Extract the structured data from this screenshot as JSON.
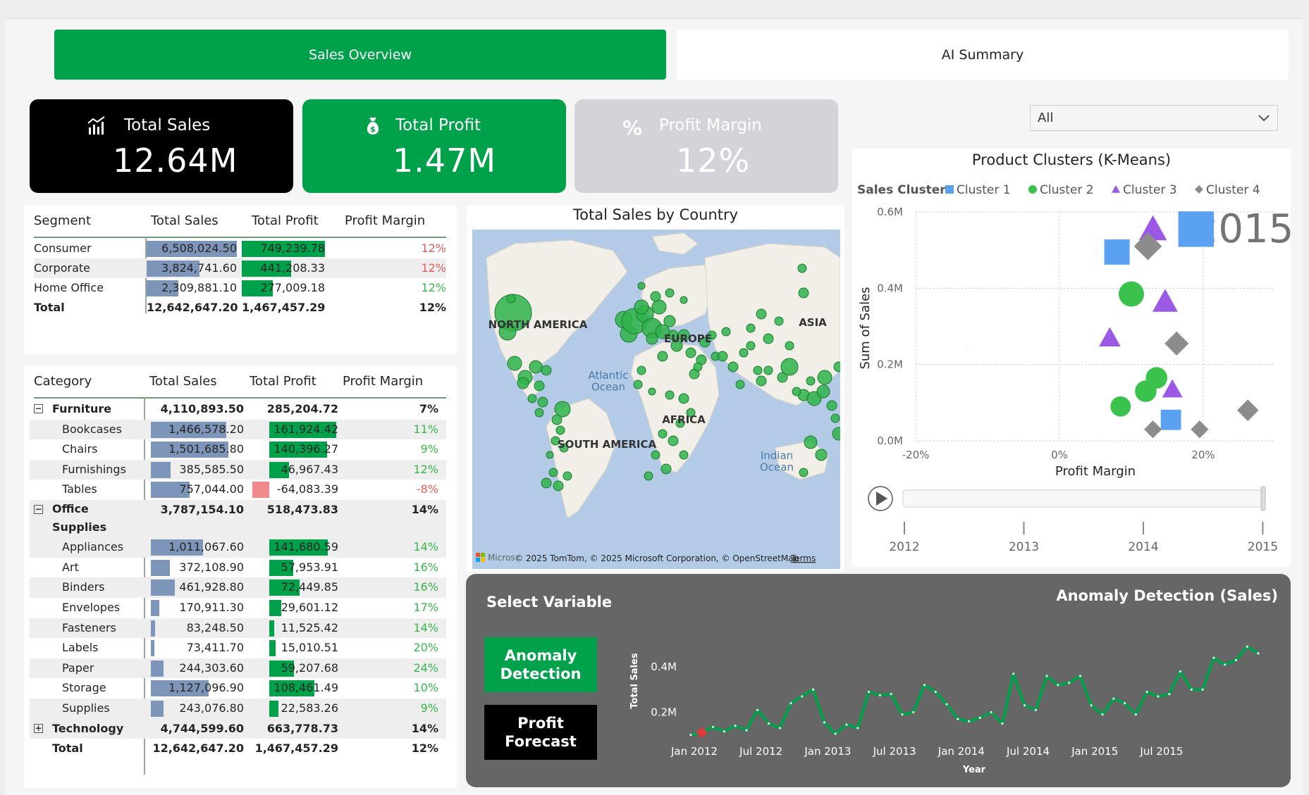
{
  "nav": {
    "tabs": [
      {
        "label": "Sales Overview",
        "active": true
      },
      {
        "label": "AI Summary",
        "active": false
      }
    ]
  },
  "kpis": [
    {
      "title": "Total Sales",
      "value": "12.64M",
      "icon": "bar-chart-icon",
      "bg": "#000000",
      "fg": "#ffffff"
    },
    {
      "title": "Total Profit",
      "value": "1.47M",
      "icon": "money-bag-icon",
      "bg": "#00a14b",
      "fg": "#ffffff"
    },
    {
      "title": "Profit Margin",
      "value": "12%",
      "icon": "percent-icon",
      "bg": "#d3d4d9",
      "fg": "#ffffff"
    }
  ],
  "segment_table": {
    "headers": [
      "Segment",
      "Total Sales",
      "Total Profit",
      "Profit Margin"
    ],
    "rows": [
      {
        "name": "Consumer",
        "sales": "6,508,024.50",
        "profit": "749,239.78",
        "margin": "12%",
        "sales_frac": 1.0,
        "profit_frac": 1.0,
        "margin_tone": "neg"
      },
      {
        "name": "Corporate",
        "sales": "3,824,741.60",
        "profit": "441,208.33",
        "margin": "12%",
        "sales_frac": 0.588,
        "profit_frac": 0.589,
        "margin_tone": "neg"
      },
      {
        "name": "Home Office",
        "sales": "2,309,881.10",
        "profit": "277,009.18",
        "margin": "12%",
        "sales_frac": 0.355,
        "profit_frac": 0.37,
        "margin_tone": "pos"
      }
    ],
    "total": {
      "name": "Total",
      "sales": "12,642,647.20",
      "profit": "1,467,457.29",
      "margin": "12%"
    }
  },
  "category_table": {
    "headers": [
      "Category",
      "Total Sales",
      "Total Profit",
      "Profit Margin"
    ],
    "rows": [
      {
        "kind": "group",
        "name": "Furniture",
        "sales": "4,110,893.50",
        "profit": "285,204.72",
        "margin": "7%",
        "expander": "⊟"
      },
      {
        "kind": "item",
        "name": "Bookcases",
        "sales": "1,466,578.20",
        "profit": "161,924.42",
        "margin": "11%",
        "sales_frac": 0.973,
        "profit_frac": 0.612,
        "tone": "pos"
      },
      {
        "kind": "item",
        "name": "Chairs",
        "sales": "1,501,685.80",
        "profit": "140,396.27",
        "margin": "9%",
        "sales_frac": 0.996,
        "profit_frac": 0.531,
        "tone": "pos"
      },
      {
        "kind": "item",
        "name": "Furnishings",
        "sales": "385,585.50",
        "profit": "46,967.43",
        "margin": "12%",
        "sales_frac": 0.256,
        "profit_frac": 0.178,
        "tone": "pos"
      },
      {
        "kind": "item",
        "name": "Tables",
        "sales": "757,044.00",
        "profit": "-64,083.39",
        "margin": "-8%",
        "sales_frac": 0.502,
        "profit_frac": -0.242,
        "tone": "neg"
      },
      {
        "kind": "group",
        "name": "Office Supplies",
        "sales": "3,787,154.10",
        "profit": "518,473.83",
        "margin": "14%",
        "expander": "⊟"
      },
      {
        "kind": "item",
        "name": "Appliances",
        "sales": "1,011,067.60",
        "profit": "141,680.59",
        "margin": "14%",
        "sales_frac": 0.671,
        "profit_frac": 0.536,
        "tone": "pos"
      },
      {
        "kind": "item",
        "name": "Art",
        "sales": "372,108.90",
        "profit": "57,953.91",
        "margin": "16%",
        "sales_frac": 0.247,
        "profit_frac": 0.219,
        "tone": "pos"
      },
      {
        "kind": "item",
        "name": "Binders",
        "sales": "461,928.80",
        "profit": "72,449.85",
        "margin": "16%",
        "sales_frac": 0.307,
        "profit_frac": 0.274,
        "tone": "pos"
      },
      {
        "kind": "item",
        "name": "Envelopes",
        "sales": "170,911.30",
        "profit": "29,601.12",
        "margin": "17%",
        "sales_frac": 0.113,
        "profit_frac": 0.112,
        "tone": "pos"
      },
      {
        "kind": "item",
        "name": "Fasteners",
        "sales": "83,248.50",
        "profit": "11,525.42",
        "margin": "14%",
        "sales_frac": 0.055,
        "profit_frac": 0.044,
        "tone": "pos"
      },
      {
        "kind": "item",
        "name": "Labels",
        "sales": "73,411.70",
        "profit": "15,010.51",
        "margin": "20%",
        "sales_frac": 0.049,
        "profit_frac": 0.057,
        "tone": "pos"
      },
      {
        "kind": "item",
        "name": "Paper",
        "sales": "244,303.60",
        "profit": "59,207.68",
        "margin": "24%",
        "sales_frac": 0.162,
        "profit_frac": 0.224,
        "tone": "pos"
      },
      {
        "kind": "item",
        "name": "Storage",
        "sales": "1,127,096.90",
        "profit": "108,461.49",
        "margin": "10%",
        "sales_frac": 0.748,
        "profit_frac": 0.41,
        "tone": "pos"
      },
      {
        "kind": "item",
        "name": "Supplies",
        "sales": "243,076.80",
        "profit": "22,583.26",
        "margin": "9%",
        "sales_frac": 0.161,
        "profit_frac": 0.085,
        "tone": "pos"
      },
      {
        "kind": "group",
        "name": "Technology",
        "sales": "4,744,599.60",
        "profit": "663,778.73",
        "margin": "14%",
        "expander": "⊞"
      }
    ],
    "total": {
      "name": "Total",
      "sales": "12,642,647.20",
      "profit": "1,467,457.29",
      "margin": "12%"
    }
  },
  "map": {
    "title": "Total Sales by Country",
    "labels": {
      "north_america": "NORTH AMERICA",
      "europe": "EUROPE",
      "asia": "ASIA",
      "africa": "AFRICA",
      "south_america": "SOUTH AMERICA",
      "atlantic": "Atlantic\nOcean",
      "indian": "Indian\nOcean"
    },
    "credits": "© 2025 TomTom, © 2025 Microsoft Corporation, © OpenStreetMap",
    "terms": "Terms",
    "logo_text": "Micros",
    "water": "#b3cbe7",
    "land": "#f1efe8",
    "bubble_color": "#2fb34a"
  },
  "cluster": {
    "filter_value": "All",
    "year_watermark": "2015",
    "play_years": [
      "2012",
      "2013",
      "2014",
      "2015"
    ],
    "chart_data": {
      "type": "scatter",
      "title": "Product Clusters (K-Means)",
      "legend_title": "Sales Cluster",
      "legend_position": "top-left",
      "xlabel": "Profit Margin",
      "ylabel": "Sum of Sales",
      "xlim": [
        -0.2,
        0.3
      ],
      "ylim": [
        0,
        0.6
      ],
      "x_ticks": [
        "-20%",
        "0%",
        "20%"
      ],
      "y_ticks": [
        "0.0M",
        "0.2M",
        "0.4M",
        "0.6M"
      ],
      "series": [
        {
          "name": "Cluster 1",
          "color": "#5aa1f2",
          "shape": "square",
          "points": [
            [
              -0.13,
              0.245,
              0.02
            ],
            [
              0.08,
              0.495,
              1.0
            ],
            [
              0.19,
              0.555,
              1.4
            ],
            [
              0.155,
              0.055,
              0.8
            ]
          ]
        },
        {
          "name": "Cluster 2",
          "color": "#3ac24c",
          "shape": "circle",
          "points": [
            [
              0.1,
              0.385,
              1.0
            ],
            [
              0.135,
              0.165,
              0.85
            ],
            [
              0.12,
              0.13,
              0.85
            ],
            [
              0.085,
              0.09,
              0.8
            ]
          ]
        },
        {
          "name": "Cluster 3",
          "color": "#9b59e6",
          "shape": "triangle",
          "points": [
            [
              0.13,
              0.555,
              1.1
            ],
            [
              0.147,
              0.365,
              1.0
            ],
            [
              0.07,
              0.27,
              0.85
            ],
            [
              0.157,
              0.135,
              0.8
            ]
          ]
        },
        {
          "name": "Cluster 4",
          "color": "#8c8c8c",
          "shape": "diamond",
          "points": [
            [
              0.123,
              0.51,
              1.1
            ],
            [
              0.163,
              0.255,
              0.95
            ],
            [
              0.262,
              0.08,
              0.85
            ],
            [
              0.195,
              0.03,
              0.7
            ],
            [
              0.13,
              0.03,
              0.7
            ]
          ]
        }
      ]
    }
  },
  "anomaly": {
    "select_label": "Select Variable",
    "buttons": [
      {
        "label": "Anomaly Detection",
        "active": true
      },
      {
        "label": "Profit Forecast",
        "active": false
      }
    ],
    "chart_data": {
      "type": "line",
      "title": "Anomaly Detection (Sales)",
      "xlabel": "Year",
      "ylabel": "Total Sales",
      "y_ticks": [
        "0.2M",
        "0.4M"
      ],
      "x_ticks": [
        "Jan 2012",
        "Jul 2012",
        "Jan 2013",
        "Jul 2013",
        "Jan 2014",
        "Jul 2014",
        "Jan 2015",
        "Jul 2015"
      ],
      "ylim": [
        0.08,
        0.5
      ],
      "line_color": "#00a14b",
      "anomaly_color": "#e03a3a",
      "values": [
        0.1,
        0.11,
        0.135,
        0.115,
        0.14,
        0.12,
        0.21,
        0.15,
        0.13,
        0.24,
        0.27,
        0.3,
        0.155,
        0.105,
        0.145,
        0.13,
        0.29,
        0.275,
        0.28,
        0.19,
        0.2,
        0.32,
        0.29,
        0.235,
        0.17,
        0.16,
        0.175,
        0.2,
        0.15,
        0.37,
        0.23,
        0.21,
        0.36,
        0.32,
        0.33,
        0.36,
        0.23,
        0.19,
        0.26,
        0.24,
        0.19,
        0.29,
        0.27,
        0.28,
        0.38,
        0.3,
        0.3,
        0.44,
        0.41,
        0.43,
        0.49,
        0.46
      ],
      "anomalies": [
        1
      ]
    }
  }
}
